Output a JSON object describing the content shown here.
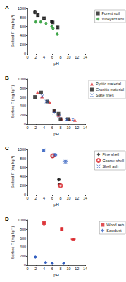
{
  "chart_data": [
    {
      "type": "scatter",
      "title": "A",
      "xlabel": "pH",
      "ylabel": "Sorbed F (mg kg⁻¹)",
      "xlim": [
        0,
        14
      ],
      "ylim": [
        0,
        1000
      ],
      "xticks": [
        0,
        2,
        4,
        6,
        8,
        10,
        12,
        14
      ],
      "yticks": [
        0,
        200,
        400,
        600,
        800,
        1000
      ],
      "grid": false,
      "legend": "upper right",
      "series": [
        {
          "name": "Forest soil",
          "color": "#1a1a1a",
          "marker": "square",
          "x": [
            1.8,
            2.5,
            4.0,
            5.9,
            6.1,
            7.3
          ],
          "values": [
            920,
            850,
            780,
            710,
            690,
            580
          ],
          "yerr": [
            40,
            30,
            25,
            20,
            20,
            25
          ]
        },
        {
          "name": "Vineyard soil",
          "color": "#2e9e3a",
          "marker": "diamond",
          "x": [
            2.0,
            3.2,
            4.5,
            5.9,
            6.2,
            7.2
          ],
          "values": [
            700,
            700,
            670,
            600,
            560,
            430
          ],
          "yerr": [
            20,
            20,
            20,
            20,
            20,
            20
          ]
        }
      ]
    },
    {
      "type": "scatter",
      "title": "B",
      "xlabel": "pH",
      "ylabel": "Sorbed F (mg kg⁻¹)",
      "xlim": [
        0,
        14
      ],
      "ylim": [
        0,
        1000
      ],
      "xticks": [
        0,
        2,
        4,
        6,
        8,
        10,
        12,
        14
      ],
      "yticks": [
        0,
        200,
        400,
        600,
        800,
        1000
      ],
      "grid": false,
      "legend": "upper right",
      "series": [
        {
          "name": "Pyritic material",
          "color": "#d9262a",
          "marker": "triangle",
          "x": [
            2.4,
            3.5,
            5.4,
            6.5,
            7.5,
            8.2,
            10.3,
            11.5
          ],
          "values": [
            700,
            610,
            480,
            300,
            200,
            120,
            100,
            90
          ]
        },
        {
          "name": "Granitic material",
          "color": "#1a1a1a",
          "marker": "square",
          "x": [
            1.8,
            3.3,
            4.8,
            6.5,
            7.5,
            8.0,
            9.8
          ],
          "values": [
            600,
            700,
            500,
            290,
            230,
            110,
            110
          ]
        },
        {
          "name": "Slate fines",
          "color": "#2f5dbf",
          "marker": "x",
          "x": [
            3.6,
            4.6,
            6.5,
            7.6,
            9.5,
            11.0
          ],
          "values": [
            620,
            500,
            250,
            170,
            100,
            100
          ]
        }
      ]
    },
    {
      "type": "scatter",
      "title": "C",
      "xlabel": "pH",
      "ylabel": "Sorbed F (mg kg⁻¹)",
      "xlim": [
        0,
        14
      ],
      "ylim": [
        0,
        1000
      ],
      "xticks": [
        0,
        2,
        4,
        6,
        8,
        10,
        12,
        14
      ],
      "yticks": [
        0,
        200,
        400,
        600,
        800,
        1000
      ],
      "grid": false,
      "legend": "upper right",
      "series": [
        {
          "name": "Fine shell",
          "color": "#1a1a1a",
          "marker": "diamond",
          "x": [
            6.1,
            7.6,
            7.7
          ],
          "values": [
            850,
            330,
            220
          ],
          "yerr": [
            30,
            20,
            20
          ],
          "xerr": [
            0.4,
            0.3,
            0.3
          ]
        },
        {
          "name": "Coarse shell",
          "color": "#d9262a",
          "marker": "circle_open",
          "x": [
            6.1,
            8.0
          ],
          "values": [
            860,
            200
          ],
          "yerr": [
            30,
            20
          ],
          "xerr": [
            0.4,
            0.3
          ]
        },
        {
          "name": "Shell ash",
          "color": "#2f5dbf",
          "marker": "x",
          "x": [
            3.9,
            6.6,
            9.2
          ],
          "values": [
            980,
            880,
            730
          ],
          "yerr": [
            20,
            30,
            30
          ],
          "xerr": [
            0.3,
            0.5,
            0.6
          ]
        }
      ]
    },
    {
      "type": "scatter",
      "title": "D",
      "xlabel": "pH",
      "ylabel": "Sorbed F (mg kg⁻¹)",
      "xlim": [
        0,
        14
      ],
      "ylim": [
        0,
        1000
      ],
      "xticks": [
        0,
        2,
        4,
        6,
        8,
        10,
        12,
        14
      ],
      "yticks": [
        0,
        200,
        400,
        600,
        800,
        1000
      ],
      "grid": false,
      "legend": "upper right",
      "series": [
        {
          "name": "Wood ash",
          "color": "#d9262a",
          "marker": "square",
          "x": [
            4.0,
            8.3,
            11.1
          ],
          "values": [
            930,
            800,
            570
          ],
          "yerr": [
            40,
            30,
            20
          ],
          "xerr": [
            0.2,
            0.2,
            0.5
          ]
        },
        {
          "name": "Sawdust",
          "color": "#2f5dbf",
          "marker": "diamond",
          "x": [
            1.9,
            4.4,
            6.0,
            8.8
          ],
          "values": [
            180,
            60,
            40,
            40
          ],
          "yerr": [
            15,
            10,
            10,
            10
          ],
          "xerr": [
            0.1,
            0.1,
            0.1,
            0.1
          ]
        }
      ]
    }
  ]
}
